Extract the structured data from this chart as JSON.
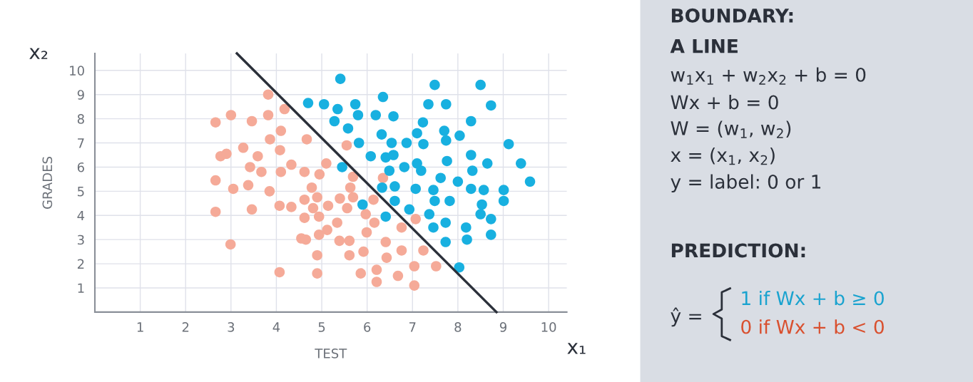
{
  "chart_data": [
    {
      "type": "scatter",
      "xlabel": "TEST",
      "ylabel": "GRADES",
      "xlim": [
        0,
        10.4
      ],
      "ylim": [
        0,
        10.7
      ],
      "xticks": [
        1,
        2,
        3,
        4,
        5,
        6,
        7,
        8,
        9,
        10
      ],
      "yticks": [
        1,
        2,
        3,
        4,
        5,
        6,
        7,
        8,
        9,
        10
      ],
      "grid": true,
      "marker": "circle",
      "annotations": [
        "x₁",
        "x₂"
      ],
      "series": [
        {
          "color": "#f5aa98",
          "x": [
            3.82,
            4.18,
            3.0,
            2.66,
            3.46,
            3.82,
            4.1,
            3.86,
            4.67,
            5.55,
            3.27,
            4.08,
            2.77,
            2.9,
            3.59,
            3.42,
            3.67,
            4.1,
            4.33,
            4.62,
            4.95,
            5.1,
            5.69,
            5.63,
            2.66,
            3.05,
            3.38,
            3.85,
            4.78,
            4.62,
            4.9,
            5.4,
            5.69,
            4.07,
            4.33,
            4.81,
            5.14,
            5.56,
            2.66,
            3.46,
            4.62,
            4.94,
            5.34,
            5.12,
            4.55,
            4.65,
            4.94,
            5.39,
            5.61,
            2.99,
            4.9,
            5.61,
            4.07,
            4.9,
            5.86,
            6.35,
            6.14,
            5.97,
            6.16,
            6.76,
            7.07,
            5.99,
            6.41,
            5.92,
            6.43,
            6.76,
            7.24,
            7.04,
            7.52,
            6.21,
            6.68,
            6.21,
            7.04
          ],
          "values": [
            9.0,
            8.4,
            8.15,
            7.85,
            7.9,
            8.15,
            7.5,
            7.15,
            7.15,
            6.9,
            6.8,
            6.7,
            6.45,
            6.55,
            6.45,
            6.0,
            5.8,
            5.8,
            6.1,
            5.8,
            5.7,
            6.15,
            5.6,
            5.15,
            5.45,
            5.1,
            5.25,
            5.0,
            5.15,
            4.65,
            4.75,
            4.7,
            4.75,
            4.4,
            4.35,
            4.3,
            4.4,
            4.3,
            4.15,
            4.25,
            3.9,
            3.95,
            3.7,
            3.4,
            3.05,
            3.0,
            3.2,
            2.95,
            2.95,
            2.8,
            2.35,
            2.35,
            1.65,
            1.6,
            1.6,
            5.55,
            4.65,
            4.05,
            3.7,
            3.5,
            3.85,
            3.3,
            2.9,
            2.5,
            2.25,
            2.55,
            2.55,
            1.9,
            1.9,
            1.75,
            1.5,
            1.25,
            1.1
          ]
        },
        {
          "color": "#18b0e0",
          "x": [
            4.7,
            5.05,
            5.35,
            5.74,
            5.8,
            5.28,
            5.58,
            5.82,
            5.41,
            5.45,
            5.9,
            6.35,
            6.19,
            6.58,
            7.49,
            8.5,
            7.35,
            7.74,
            8.73,
            7.23,
            8.29,
            6.32,
            7.1,
            7.7,
            8.04,
            6.54,
            6.87,
            7.24,
            7.74,
            9.12,
            6.08,
            6.41,
            6.58,
            8.29,
            8.65,
            7.76,
            6.82,
            7.1,
            7.19,
            6.49,
            8.32,
            7.62,
            8.0,
            6.33,
            6.61,
            7.07,
            7.46,
            8.29,
            8.57,
            9.01,
            9.01,
            8.53,
            6.61,
            7.49,
            7.82,
            6.93,
            6.41,
            7.37,
            8.5,
            8.73,
            7.73,
            7.46,
            8.18,
            8.73,
            8.2,
            7.73,
            8.03,
            9.59,
            9.39
          ],
          "values": [
            8.65,
            8.6,
            8.4,
            8.6,
            8.15,
            7.9,
            7.6,
            7.0,
            9.65,
            6.0,
            4.45,
            8.9,
            8.15,
            8.1,
            9.4,
            9.4,
            8.6,
            8.6,
            8.55,
            7.85,
            7.9,
            7.35,
            7.4,
            7.5,
            7.3,
            7.0,
            7.0,
            6.95,
            7.1,
            6.95,
            6.45,
            6.4,
            6.5,
            6.5,
            6.15,
            6.25,
            6.0,
            6.15,
            5.85,
            5.85,
            5.85,
            5.55,
            5.4,
            5.15,
            5.2,
            5.1,
            5.05,
            5.1,
            5.05,
            5.05,
            4.6,
            4.45,
            4.6,
            4.6,
            4.6,
            4.25,
            3.95,
            4.05,
            4.05,
            3.85,
            3.7,
            3.5,
            3.5,
            3.2,
            3.0,
            2.9,
            1.85,
            5.4,
            6.15
          ]
        },
        {
          "type": "line",
          "color": "#2b303a",
          "marker": "none",
          "x": [
            3.13,
            8.85
          ],
          "values": [
            10.7,
            0
          ]
        }
      ]
    },
    {
      "type": "other",
      "annotations": [
        "BOUNDARY:",
        "A LINE",
        "w$_{1}$x$_{1}$ + w$_{2}$x$_{2}$ + b = 0",
        "Wx + b = 0",
        "W = (w$_{1}$, w$_{2}$)",
        "x = (x$_{1}$, x$_{2}$)",
        "y = label: 0 or 1",
        "PREDICTION:",
        "ŷ =",
        "1 if Wx + b ≥ 0",
        "0 if Wx + b < 0"
      ],
      "colors": [
        null,
        null,
        null,
        null,
        null,
        null,
        null,
        null,
        null,
        "#1aa3cf",
        "#d9502f"
      ]
    }
  ]
}
